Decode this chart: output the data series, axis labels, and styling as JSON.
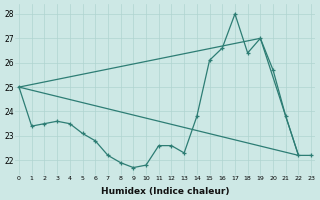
{
  "background_color": "#cde8e5",
  "grid_color": "#b0d4d0",
  "line_color": "#2d7d74",
  "xlabel": "Humidex (Indice chaleur)",
  "xlim": [
    -0.3,
    23.3
  ],
  "ylim": [
    21.4,
    28.4
  ],
  "yticks": [
    22,
    23,
    24,
    25,
    26,
    27,
    28
  ],
  "xticks": [
    0,
    1,
    2,
    3,
    4,
    5,
    6,
    7,
    8,
    9,
    10,
    11,
    12,
    13,
    14,
    15,
    16,
    17,
    18,
    19,
    20,
    21,
    22,
    23
  ],
  "line1_x": [
    0,
    1,
    2,
    3,
    4,
    5,
    6,
    7,
    8,
    9,
    10,
    11,
    12,
    13,
    14,
    15,
    16,
    17,
    18,
    19,
    20,
    21,
    22,
    23
  ],
  "line1_y": [
    25.0,
    23.4,
    23.5,
    23.6,
    23.5,
    23.1,
    22.8,
    22.2,
    21.9,
    21.7,
    21.8,
    22.6,
    22.6,
    22.3,
    23.8,
    26.1,
    26.6,
    28.0,
    26.4,
    27.0,
    25.7,
    23.8,
    22.2,
    22.2
  ],
  "line2_x": [
    0,
    19,
    22
  ],
  "line2_y": [
    25.0,
    27.0,
    22.2
  ],
  "line3_x": [
    0,
    22
  ],
  "line3_y": [
    25.0,
    22.2
  ]
}
